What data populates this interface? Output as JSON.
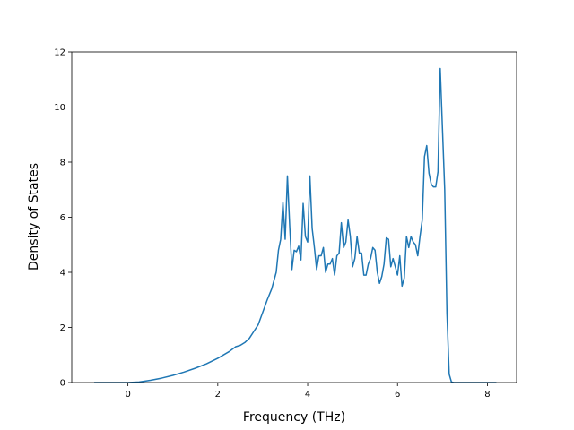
{
  "chart_data": {
    "type": "line",
    "title": "",
    "xlabel": "Frequency (THz)",
    "ylabel": "Density of States",
    "xlim": [
      -1.25,
      8.65
    ],
    "ylim": [
      0,
      12
    ],
    "x_ticks": [
      0,
      2,
      4,
      6,
      8
    ],
    "y_ticks": [
      0,
      2,
      4,
      6,
      8,
      10,
      12
    ],
    "x_tick_labels": [
      "0",
      "2",
      "4",
      "6",
      "8"
    ],
    "y_tick_labels": [
      "0",
      "2",
      "4",
      "6",
      "8",
      "10",
      "12"
    ],
    "grid": false,
    "legend": "none",
    "series": [
      {
        "color": "#1f77b4",
        "x": [
          -0.75,
          0,
          0.25,
          0.5,
          0.75,
          1.0,
          1.25,
          1.5,
          1.75,
          2.0,
          2.25,
          2.4,
          2.5,
          2.6,
          2.7,
          2.8,
          2.9,
          3.0,
          3.1,
          3.2,
          3.3,
          3.35,
          3.4,
          3.45,
          3.5,
          3.55,
          3.6,
          3.65,
          3.7,
          3.75,
          3.8,
          3.85,
          3.9,
          3.95,
          4.0,
          4.05,
          4.1,
          4.15,
          4.2,
          4.25,
          4.3,
          4.35,
          4.4,
          4.45,
          4.5,
          4.55,
          4.6,
          4.65,
          4.7,
          4.75,
          4.8,
          4.85,
          4.9,
          4.95,
          5.0,
          5.05,
          5.1,
          5.15,
          5.2,
          5.25,
          5.3,
          5.35,
          5.4,
          5.45,
          5.5,
          5.55,
          5.6,
          5.65,
          5.7,
          5.75,
          5.8,
          5.85,
          5.9,
          5.95,
          6.0,
          6.05,
          6.1,
          6.15,
          6.2,
          6.25,
          6.3,
          6.35,
          6.4,
          6.45,
          6.5,
          6.55,
          6.6,
          6.65,
          6.7,
          6.75,
          6.8,
          6.85,
          6.9,
          6.95,
          7.0,
          7.05,
          7.1,
          7.15,
          7.2,
          7.25,
          7.3,
          7.35,
          7.4,
          7.45,
          7.5,
          7.6,
          8.0,
          8.2
        ],
        "y": [
          0,
          0,
          0.02,
          0.08,
          0.16,
          0.26,
          0.38,
          0.52,
          0.68,
          0.88,
          1.12,
          1.3,
          1.35,
          1.45,
          1.6,
          1.85,
          2.1,
          2.55,
          3.0,
          3.4,
          4.0,
          4.8,
          5.2,
          6.55,
          5.2,
          7.5,
          5.7,
          4.1,
          4.8,
          4.75,
          4.95,
          4.45,
          6.5,
          5.3,
          5.1,
          7.5,
          5.6,
          4.9,
          4.1,
          4.6,
          4.6,
          4.9,
          4.0,
          4.3,
          4.3,
          4.5,
          3.9,
          4.6,
          4.7,
          5.8,
          4.9,
          5.1,
          5.9,
          5.3,
          4.2,
          4.5,
          5.3,
          4.7,
          4.7,
          3.9,
          3.9,
          4.3,
          4.5,
          4.9,
          4.8,
          4.0,
          3.6,
          3.85,
          4.3,
          5.25,
          5.2,
          4.2,
          4.5,
          4.2,
          3.9,
          4.6,
          3.5,
          3.8,
          5.3,
          4.9,
          5.3,
          5.1,
          5.0,
          4.6,
          5.3,
          5.9,
          8.2,
          8.6,
          7.6,
          7.2,
          7.1,
          7.1,
          7.65,
          11.4,
          9.2,
          7.0,
          2.5,
          0.3,
          0.02,
          0,
          0,
          0,
          0,
          0,
          0,
          0,
          0,
          0
        ]
      }
    ]
  }
}
